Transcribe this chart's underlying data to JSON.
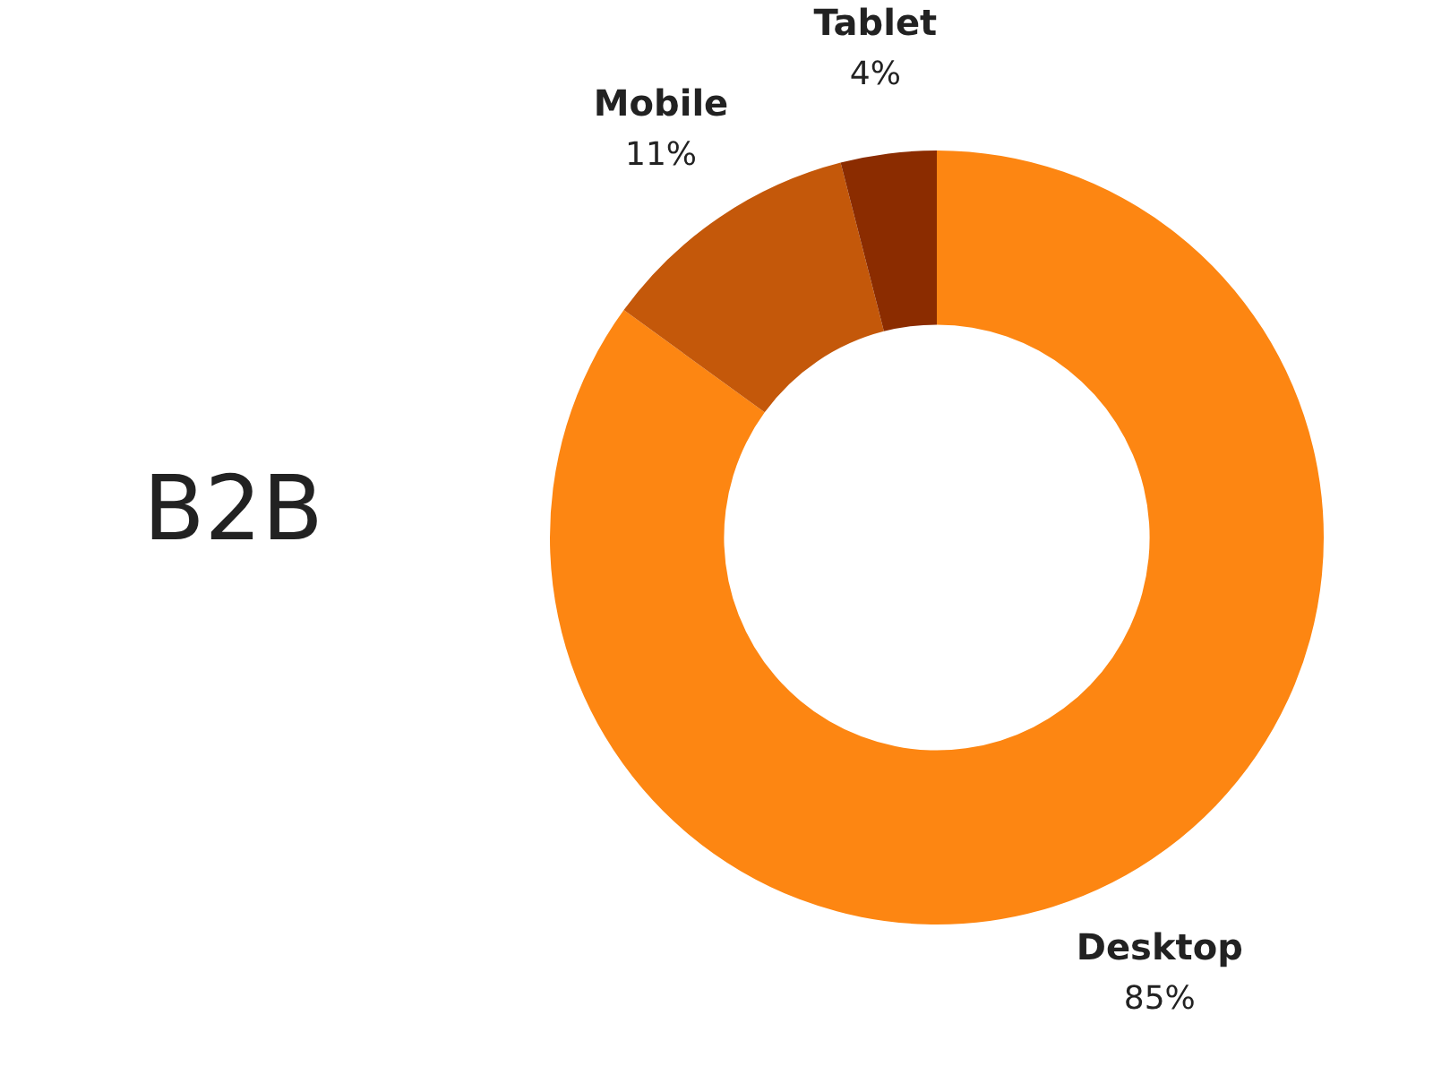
{
  "chart_data": {
    "type": "donut",
    "title": "B2B",
    "categories": [
      "Desktop",
      "Mobile",
      "Tablet"
    ],
    "values": [
      85,
      11,
      4
    ],
    "value_labels": [
      "85%",
      "11%",
      "4%"
    ],
    "colors": [
      "#fd8612",
      "#c4580a",
      "#8b2c00"
    ],
    "legend": false
  }
}
